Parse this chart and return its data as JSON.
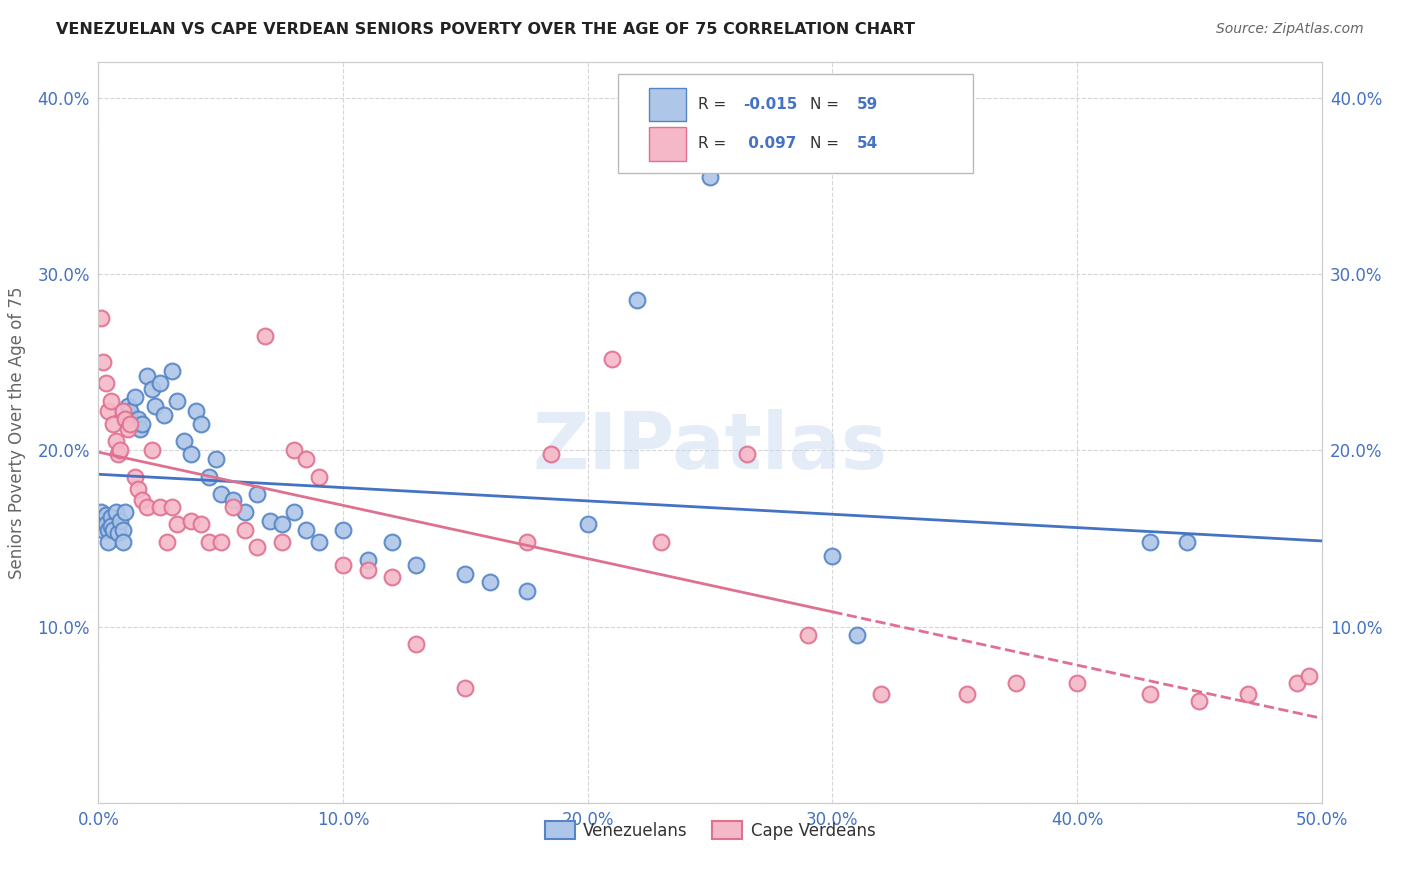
{
  "title": "VENEZUELAN VS CAPE VERDEAN SENIORS POVERTY OVER THE AGE OF 75 CORRELATION CHART",
  "source": "Source: ZipAtlas.com",
  "ylabel": "Seniors Poverty Over the Age of 75",
  "xlim": [
    0,
    0.5
  ],
  "ylim": [
    0,
    0.42
  ],
  "xticks": [
    0.0,
    0.1,
    0.2,
    0.3,
    0.4,
    0.5
  ],
  "yticks": [
    0.0,
    0.1,
    0.2,
    0.3,
    0.4
  ],
  "xticklabels": [
    "0.0%",
    "10.0%",
    "20.0%",
    "30.0%",
    "40.0%",
    "50.0%"
  ],
  "yticklabels": [
    "",
    "10.0%",
    "20.0%",
    "30.0%",
    "40.0%"
  ],
  "legend_r_ven": "-0.015",
  "legend_n_ven": "59",
  "legend_r_cape": "0.097",
  "legend_n_cape": "54",
  "ven_color": "#aec6e8",
  "cape_color": "#f5b8c8",
  "ven_edge_color": "#5585c5",
  "cape_edge_color": "#e07090",
  "ven_line_color": "#4472c4",
  "cape_line_color": "#e07090",
  "watermark": "ZIPatlas",
  "background_color": "#ffffff",
  "venezuelans_x": [
    0.001,
    0.002,
    0.002,
    0.003,
    0.003,
    0.004,
    0.004,
    0.005,
    0.005,
    0.006,
    0.007,
    0.008,
    0.009,
    0.01,
    0.01,
    0.011,
    0.012,
    0.013,
    0.014,
    0.015,
    0.016,
    0.017,
    0.018,
    0.02,
    0.022,
    0.023,
    0.025,
    0.027,
    0.03,
    0.032,
    0.035,
    0.038,
    0.04,
    0.042,
    0.045,
    0.048,
    0.05,
    0.055,
    0.06,
    0.065,
    0.07,
    0.075,
    0.08,
    0.085,
    0.09,
    0.1,
    0.11,
    0.12,
    0.13,
    0.15,
    0.16,
    0.175,
    0.2,
    0.22,
    0.25,
    0.3,
    0.31,
    0.43,
    0.445
  ],
  "venezuelans_y": [
    0.165,
    0.16,
    0.155,
    0.163,
    0.158,
    0.155,
    0.148,
    0.162,
    0.157,
    0.155,
    0.165,
    0.153,
    0.16,
    0.155,
    0.148,
    0.165,
    0.225,
    0.222,
    0.215,
    0.23,
    0.218,
    0.212,
    0.215,
    0.242,
    0.235,
    0.225,
    0.238,
    0.22,
    0.245,
    0.228,
    0.205,
    0.198,
    0.222,
    0.215,
    0.185,
    0.195,
    0.175,
    0.172,
    0.165,
    0.175,
    0.16,
    0.158,
    0.165,
    0.155,
    0.148,
    0.155,
    0.138,
    0.148,
    0.135,
    0.13,
    0.125,
    0.12,
    0.158,
    0.285,
    0.355,
    0.14,
    0.095,
    0.148,
    0.148
  ],
  "cape_verdeans_x": [
    0.001,
    0.002,
    0.003,
    0.004,
    0.005,
    0.006,
    0.007,
    0.008,
    0.009,
    0.01,
    0.011,
    0.012,
    0.013,
    0.015,
    0.016,
    0.018,
    0.02,
    0.022,
    0.025,
    0.028,
    0.03,
    0.032,
    0.038,
    0.042,
    0.045,
    0.05,
    0.055,
    0.06,
    0.065,
    0.068,
    0.075,
    0.08,
    0.085,
    0.09,
    0.1,
    0.11,
    0.12,
    0.13,
    0.15,
    0.175,
    0.185,
    0.21,
    0.23,
    0.265,
    0.29,
    0.32,
    0.355,
    0.375,
    0.4,
    0.43,
    0.45,
    0.47,
    0.49,
    0.495
  ],
  "cape_verdeans_y": [
    0.275,
    0.25,
    0.238,
    0.222,
    0.228,
    0.215,
    0.205,
    0.198,
    0.2,
    0.222,
    0.218,
    0.212,
    0.215,
    0.185,
    0.178,
    0.172,
    0.168,
    0.2,
    0.168,
    0.148,
    0.168,
    0.158,
    0.16,
    0.158,
    0.148,
    0.148,
    0.168,
    0.155,
    0.145,
    0.265,
    0.148,
    0.2,
    0.195,
    0.185,
    0.135,
    0.132,
    0.128,
    0.09,
    0.065,
    0.148,
    0.198,
    0.252,
    0.148,
    0.198,
    0.095,
    0.062,
    0.062,
    0.068,
    0.068,
    0.062,
    0.058,
    0.062,
    0.068,
    0.072
  ]
}
